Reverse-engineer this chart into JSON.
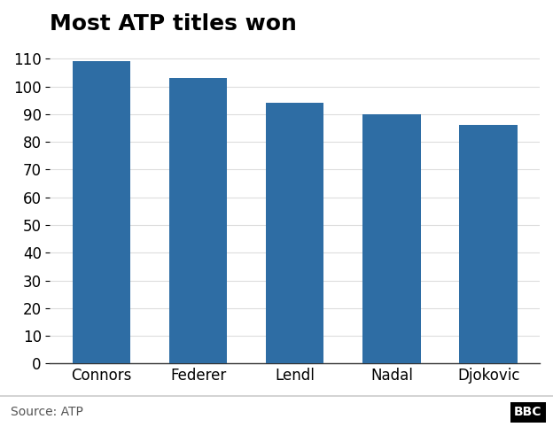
{
  "title": "Most ATP titles won",
  "categories": [
    "Connors",
    "Federer",
    "Lendl",
    "Nadal",
    "Djokovic"
  ],
  "values": [
    109,
    103,
    94,
    90,
    86
  ],
  "bar_color": "#2e6da4",
  "background_color": "#ffffff",
  "ylim": [
    0,
    115
  ],
  "yticks": [
    0,
    10,
    20,
    30,
    40,
    50,
    60,
    70,
    80,
    90,
    100,
    110
  ],
  "title_fontsize": 18,
  "tick_fontsize": 12,
  "source_text": "Source: ATP",
  "bbc_text": "BBC",
  "footer_color": "#cccccc"
}
